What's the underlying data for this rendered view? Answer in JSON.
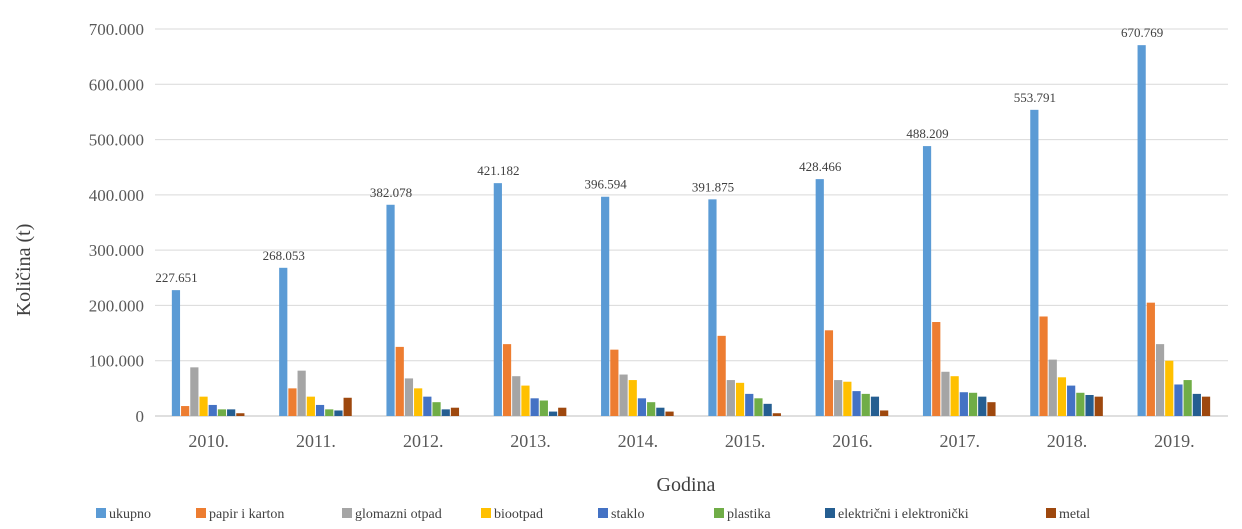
{
  "chart_data": {
    "type": "bar",
    "xlabel": "Godina",
    "ylabel": "Količina (t)",
    "ylim": [
      0,
      700000
    ],
    "yticks": [
      0,
      100000,
      200000,
      300000,
      400000,
      500000,
      600000,
      700000
    ],
    "ytick_labels": [
      "0",
      "100.000",
      "200.000",
      "300.000",
      "400.000",
      "500.000",
      "600.000",
      "700.000"
    ],
    "grid": true,
    "legend_position": "bottom",
    "categories": [
      "2010.",
      "2011.",
      "2012.",
      "2013.",
      "2014.",
      "2015.",
      "2016.",
      "2017.",
      "2018.",
      "2019."
    ],
    "series": [
      {
        "name": "ukupno",
        "color": "#5b9bd5",
        "values": [
          227651,
          268053,
          382078,
          421182,
          396594,
          391875,
          428466,
          488209,
          553791,
          670769
        ],
        "labels": [
          "227.651",
          "268.053",
          "382.078",
          "421.182",
          "396.594",
          "391.875",
          "428.466",
          "488.209",
          "553.791",
          "670.769"
        ]
      },
      {
        "name": "papir i karton",
        "color": "#ed7d31",
        "values": [
          18000,
          50000,
          125000,
          130000,
          120000,
          145000,
          155000,
          170000,
          180000,
          205000
        ]
      },
      {
        "name": "glomazni otpad",
        "color": "#a5a5a5",
        "values": [
          88000,
          82000,
          68000,
          72000,
          75000,
          65000,
          65000,
          80000,
          102000,
          130000
        ]
      },
      {
        "name": "biootpad",
        "color": "#ffc000",
        "values": [
          35000,
          35000,
          50000,
          55000,
          65000,
          60000,
          62000,
          72000,
          70000,
          100000
        ]
      },
      {
        "name": "staklo",
        "color": "#4472c4",
        "values": [
          20000,
          20000,
          35000,
          32000,
          32000,
          40000,
          45000,
          43000,
          55000,
          57000
        ]
      },
      {
        "name": "plastika",
        "color": "#70ad47",
        "values": [
          12000,
          12000,
          25000,
          28000,
          25000,
          32000,
          40000,
          42000,
          42000,
          65000
        ]
      },
      {
        "name": "električni i elektronički",
        "color": "#255e91",
        "values": [
          12000,
          10000,
          12000,
          8000,
          15000,
          22000,
          35000,
          35000,
          38000,
          40000
        ]
      },
      {
        "name": "metal",
        "color": "#9e480e",
        "values": [
          5000,
          33000,
          15000,
          15000,
          8000,
          5000,
          10000,
          25000,
          35000,
          35000
        ]
      }
    ]
  }
}
